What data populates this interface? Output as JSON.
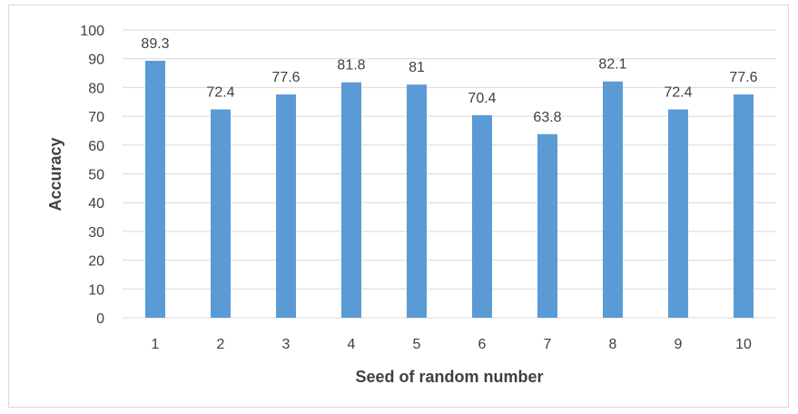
{
  "chart_data": {
    "type": "bar",
    "title": "",
    "xlabel": "Seed of random number",
    "ylabel": "Accuracy",
    "categories": [
      "1",
      "2",
      "3",
      "4",
      "5",
      "6",
      "7",
      "8",
      "9",
      "10"
    ],
    "values": [
      89.3,
      72.4,
      77.6,
      81.8,
      81,
      70.4,
      63.8,
      82.1,
      72.4,
      77.6
    ],
    "data_labels": [
      "89.3",
      "72.4",
      "77.6",
      "81.8",
      "81",
      "70.4",
      "63.8",
      "82.1",
      "72.4",
      "77.6"
    ],
    "ylim": [
      0,
      100
    ],
    "yticks": [
      0,
      10,
      20,
      30,
      40,
      50,
      60,
      70,
      80,
      90,
      100
    ],
    "grid": true,
    "legend": "none",
    "bar_color": "#5b9bd5"
  }
}
